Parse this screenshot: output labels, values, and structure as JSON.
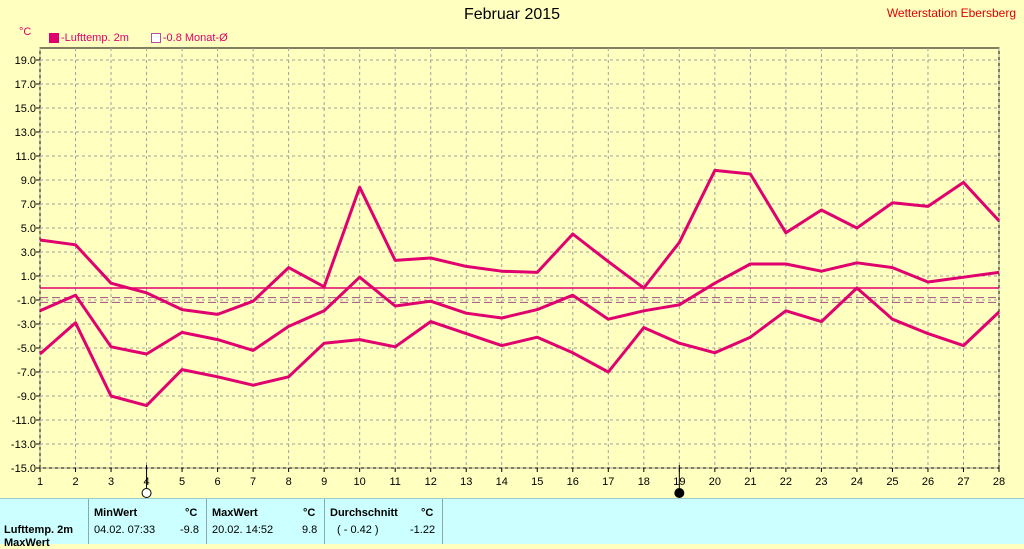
{
  "title": "Februar 2015",
  "station": "Wetterstation Ebersberg",
  "unit_label": "°C",
  "legend": [
    {
      "label": "-Lufttemp. 2m",
      "style": "filled"
    },
    {
      "label": "-0.8 Monat-Ø",
      "style": "open"
    }
  ],
  "colors": {
    "series": "#e0006e",
    "background": "#ffffc0",
    "grid": "#a0a0a0",
    "stats_bg": "#ccffff"
  },
  "chart_data": {
    "type": "line",
    "title": "Februar 2015",
    "ylabel": "°C",
    "ylim": [
      -15,
      20
    ],
    "yticks": [
      "19.0",
      "17.0",
      "15.0",
      "13.0",
      "11.0",
      "9.0",
      "7.0",
      "5.0",
      "3.0",
      "1.0",
      "-1.0",
      "-3.0",
      "-5.0",
      "-7.0",
      "-9.0",
      "-11.0",
      "-13.0",
      "-15.0"
    ],
    "x": [
      1,
      2,
      3,
      4,
      5,
      6,
      7,
      8,
      9,
      10,
      11,
      12,
      13,
      14,
      15,
      16,
      17,
      18,
      19,
      20,
      21,
      22,
      23,
      24,
      25,
      26,
      27,
      28
    ],
    "series": [
      {
        "name": "Max",
        "values": [
          4.0,
          3.6,
          0.4,
          -0.4,
          -1.8,
          -2.2,
          -1.1,
          1.7,
          0.1,
          8.4,
          2.3,
          2.5,
          1.8,
          1.4,
          1.3,
          4.5,
          2.2,
          0.0,
          3.8,
          9.8,
          9.5,
          4.6,
          6.5,
          5.0,
          7.1,
          6.8,
          8.8,
          5.6
        ]
      },
      {
        "name": "Mittel",
        "values": [
          -1.9,
          -0.6,
          -4.9,
          -5.5,
          -3.7,
          -4.3,
          -5.2,
          -3.2,
          -1.9,
          0.9,
          -1.5,
          -1.1,
          -2.1,
          -2.5,
          -1.8,
          -0.6,
          -2.6,
          -1.9,
          -1.4,
          0.4,
          2.0,
          2.0,
          1.4,
          2.1,
          1.7,
          0.5,
          0.9,
          1.3
        ]
      },
      {
        "name": "Min",
        "values": [
          -5.5,
          -2.9,
          -9.0,
          -9.8,
          -6.8,
          -7.4,
          -8.1,
          -7.4,
          -4.6,
          -4.3,
          -4.9,
          -2.8,
          -3.8,
          -4.8,
          -4.1,
          -5.4,
          -7.0,
          -3.3,
          -4.6,
          -5.4,
          -4.1,
          -1.9,
          -2.8,
          0.0,
          -2.6,
          -3.8,
          -4.8,
          -2.0
        ]
      }
    ],
    "reference_lines": [
      {
        "name": "Monat-Ø",
        "value": -0.8,
        "style": "dashed"
      },
      {
        "name": "",
        "value": -1.2,
        "style": "dashed"
      },
      {
        "name": "",
        "value": 0.0,
        "style": "solid"
      }
    ],
    "moon_markers": [
      {
        "day": 4,
        "phase": "full"
      },
      {
        "day": 19,
        "phase": "new"
      }
    ],
    "grid": true
  },
  "stats": {
    "row_label": "Lufttemp. 2m",
    "row_label_2": "MaxWert",
    "min": {
      "header": "MinWert",
      "unit": "°C",
      "time": "04.02.  07:33",
      "value": "-9.8"
    },
    "max": {
      "header": "MaxWert",
      "unit": "°C",
      "time": "20.02.  14:52",
      "value": "9.8"
    },
    "avg": {
      "header": "Durchschnitt",
      "unit": "°C",
      "extra": "( - 0.42 )",
      "value": "-1.22"
    }
  }
}
